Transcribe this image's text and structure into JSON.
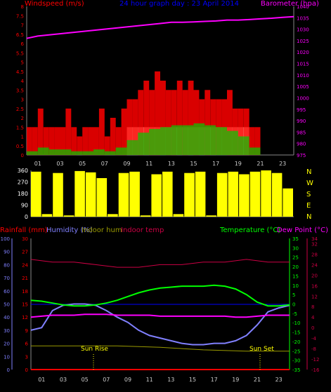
{
  "header": {
    "left_title": "Windspeed (m/s)",
    "center_title": "24 hour graph day : 23 April 2014",
    "right_title": "Barometer (hpa)"
  },
  "bottom_header": {
    "rainfall": "Rainfall (mm)",
    "humidity": "Humidity (%)",
    "indoor_hum": "Indoor hum",
    "indoor_temp": "Indoor temp",
    "temperature": "Temperature (°C)",
    "dew_point": "Dew Point (°C)"
  },
  "colors": {
    "wind_bar": "#ff0000",
    "gust": "#ff0000",
    "wind_avg": "#00cc00",
    "sun": "#e0ffe0",
    "barometer": "#ff00ff",
    "direction": "#ffff00",
    "temperature": "#00ff00",
    "dew_point": "#ff00ff",
    "humidity": "#8080ff",
    "indoor_temp": "#cc0044",
    "indoor_hum": "#999900",
    "rain": "#ff0000"
  },
  "labels": {
    "compass": [
      "N",
      "W",
      "S",
      "E",
      "N"
    ],
    "sun_rise": "Sun Rise",
    "sun_set": "Sun Set"
  },
  "chart_data": [
    {
      "type": "bar",
      "title": "24 hour graph day : 23 April 2014",
      "ylabel": "Windspeed (m/s)",
      "y2label": "Barometer (hpa)",
      "ylim": [
        0,
        8
      ],
      "y2lim": [
        975,
        1040
      ],
      "yticks": [
        "0",
        "0.5",
        "1",
        "1.5",
        "2",
        "2.5",
        "3",
        "3.5",
        "4",
        "4.5",
        "5",
        "5.5",
        "6",
        "6.5",
        "7",
        "7.5",
        "8"
      ],
      "y2ticks": [
        "975",
        "980",
        "985",
        "990",
        "995",
        "1000",
        "1005",
        "1010",
        "1015",
        "1020",
        "1025",
        "1030",
        "1035",
        "1040"
      ],
      "x_ticks": [
        "01",
        "03",
        "05",
        "07",
        "09",
        "11",
        "13",
        "15",
        "17",
        "19",
        "21",
        "23"
      ],
      "series": [
        {
          "name": "gust",
          "hours": [
            0,
            0.5,
            1,
            1.5,
            2,
            2.5,
            3,
            3.5,
            4,
            4.5,
            5,
            5.5,
            6,
            6.5,
            7,
            7.5,
            8,
            8.5,
            9,
            9.5,
            10,
            10.5,
            11,
            11.5,
            12,
            12.5,
            13,
            13.5,
            14,
            14.5,
            15,
            15.5,
            16,
            16.5,
            17,
            17.5,
            18,
            18.5,
            19,
            19.5,
            20,
            20.5
          ],
          "values": [
            1.5,
            1.5,
            2.5,
            1.5,
            1.5,
            1.5,
            1.5,
            2.5,
            1.5,
            1.0,
            1.5,
            1.5,
            1.5,
            2.5,
            1.0,
            2.0,
            1.5,
            2.5,
            3.0,
            3.0,
            3.5,
            4.0,
            3.5,
            4.5,
            4.0,
            3.5,
            3.5,
            4.0,
            3.5,
            4.0,
            3.5,
            3.0,
            3.5,
            3.0,
            3.0,
            3.0,
            3.5,
            2.5,
            2.5,
            2.5,
            1.5,
            1.5
          ]
        },
        {
          "name": "wind",
          "hours": [
            0,
            1,
            2,
            3,
            4,
            5,
            6,
            7,
            8,
            9,
            10,
            11,
            12,
            13,
            14,
            15,
            16,
            17,
            18,
            19,
            20
          ],
          "values": [
            0.2,
            0.4,
            0.3,
            0.3,
            0.2,
            0.2,
            0.3,
            0.2,
            0.4,
            0.8,
            1.2,
            1.4,
            1.5,
            1.6,
            1.6,
            1.7,
            1.6,
            1.5,
            1.3,
            1.0,
            0.4
          ]
        },
        {
          "name": "barometer",
          "x": [
            0,
            1,
            2,
            3,
            4,
            5,
            6,
            7,
            8,
            9,
            10,
            11,
            12,
            13,
            14,
            15,
            16,
            17,
            18,
            19,
            20,
            21,
            22,
            23,
            24
          ],
          "values": [
            1026,
            1027,
            1027.5,
            1028,
            1028.5,
            1029,
            1029.5,
            1030,
            1030.5,
            1031,
            1031.5,
            1032,
            1032.5,
            1033,
            1033,
            1033.2,
            1033.4,
            1033.6,
            1034,
            1034,
            1034.2,
            1034.5,
            1034.8,
            1035.2,
            1035.5
          ]
        }
      ]
    },
    {
      "type": "scatter",
      "ylabel": "Wind direction",
      "ylim": [
        0,
        360
      ],
      "yticks": [
        "0",
        "90",
        "180",
        "270",
        "360"
      ],
      "x_ticks": [
        "01",
        "03",
        "05",
        "07",
        "09",
        "11",
        "13",
        "15",
        "17",
        "19",
        "21",
        "23"
      ],
      "series": [
        {
          "name": "direction",
          "hours": [
            0,
            1,
            2,
            3,
            4,
            5,
            6,
            7,
            8,
            9,
            10,
            11,
            12,
            13,
            14,
            15,
            16,
            17,
            18,
            19,
            20,
            21,
            22,
            23
          ],
          "values": [
            350,
            20,
            340,
            10,
            355,
            345,
            300,
            20,
            340,
            350,
            10,
            330,
            350,
            20,
            340,
            350,
            10,
            340,
            350,
            330,
            350,
            360,
            340,
            220
          ]
        }
      ]
    },
    {
      "type": "line",
      "ylabel": "Rainfall (mm) / Humidity (%)",
      "y2label": "Temperature (°C) / Dew Point (°C)",
      "ylim": [
        0,
        100
      ],
      "yticks_humidity": [
        "0",
        "10",
        "20",
        "30",
        "40",
        "50",
        "60",
        "70",
        "80",
        "90",
        "100"
      ],
      "yticks_rain": [
        "0",
        "3",
        "6",
        "9",
        "12",
        "15",
        "18",
        "21",
        "24",
        "27",
        "30"
      ],
      "yticks_temp": [
        "-35",
        "-30",
        "-25",
        "-20",
        "-15",
        "-10",
        "-5",
        "0",
        "5",
        "10",
        "15",
        "20",
        "25",
        "30",
        "35"
      ],
      "yticks_indoor": [
        "-16",
        "-12",
        "-8",
        "-4",
        "0",
        "4",
        "8",
        "12",
        "16",
        "20",
        "24",
        "28",
        "32",
        "34"
      ],
      "x_ticks": [
        "01",
        "03",
        "05",
        "07",
        "09",
        "11",
        "13",
        "15",
        "17",
        "19",
        "21",
        "23"
      ],
      "series": [
        {
          "name": "Temperature (°C)",
          "x": [
            0,
            1,
            2,
            3,
            4,
            5,
            6,
            7,
            8,
            9,
            10,
            11,
            12,
            13,
            14,
            15,
            16,
            17,
            18,
            19,
            20,
            21,
            22,
            23,
            24
          ],
          "values": [
            2,
            1.5,
            0.5,
            -0.5,
            -1,
            -1,
            -0.5,
            0.5,
            2,
            4,
            6,
            7.5,
            8.5,
            9,
            9.5,
            9.5,
            9.5,
            10,
            9.5,
            8,
            5,
            1,
            -1,
            -1,
            -0.5
          ]
        },
        {
          "name": "Dew Point (°C)",
          "x": [
            0,
            1,
            2,
            3,
            4,
            5,
            6,
            7,
            8,
            9,
            10,
            11,
            12,
            13,
            14,
            15,
            16,
            17,
            18,
            19,
            20,
            21,
            22,
            23,
            24
          ],
          "values": [
            -7,
            -6.5,
            -6,
            -6,
            -6,
            -5.5,
            -5.5,
            -5.5,
            -6,
            -6,
            -6,
            -6,
            -6.5,
            -6.5,
            -6.5,
            -6.5,
            -6.5,
            -6.5,
            -6.5,
            -7,
            -7,
            -6.5,
            -6,
            -6,
            -6
          ]
        },
        {
          "name": "Humidity (%)",
          "x": [
            0,
            1,
            2,
            3,
            4,
            5,
            6,
            7,
            8,
            9,
            10,
            11,
            12,
            13,
            14,
            15,
            16,
            17,
            18,
            19,
            20,
            21,
            22,
            23,
            24
          ],
          "values": [
            30,
            32,
            45,
            49,
            50,
            50,
            49,
            45,
            40,
            36,
            30,
            26,
            24,
            22,
            20,
            19,
            19,
            20,
            20,
            22,
            26,
            34,
            44,
            47,
            49
          ]
        },
        {
          "name": "Indoor temp",
          "x": [
            0,
            2,
            4,
            6,
            8,
            10,
            12,
            14,
            16,
            18,
            20,
            22,
            24
          ],
          "values": [
            26,
            25,
            25,
            24,
            23,
            23,
            24,
            24,
            25,
            25,
            26,
            25,
            25
          ]
        },
        {
          "name": "Indoor hum",
          "x": [
            0,
            4,
            8,
            12,
            14,
            16,
            20,
            24
          ],
          "values": [
            18,
            18,
            18,
            17,
            16,
            15,
            14,
            14
          ]
        },
        {
          "name": "Rainfall (mm)",
          "x": [
            0,
            24
          ],
          "values": [
            0,
            0
          ]
        }
      ]
    }
  ]
}
